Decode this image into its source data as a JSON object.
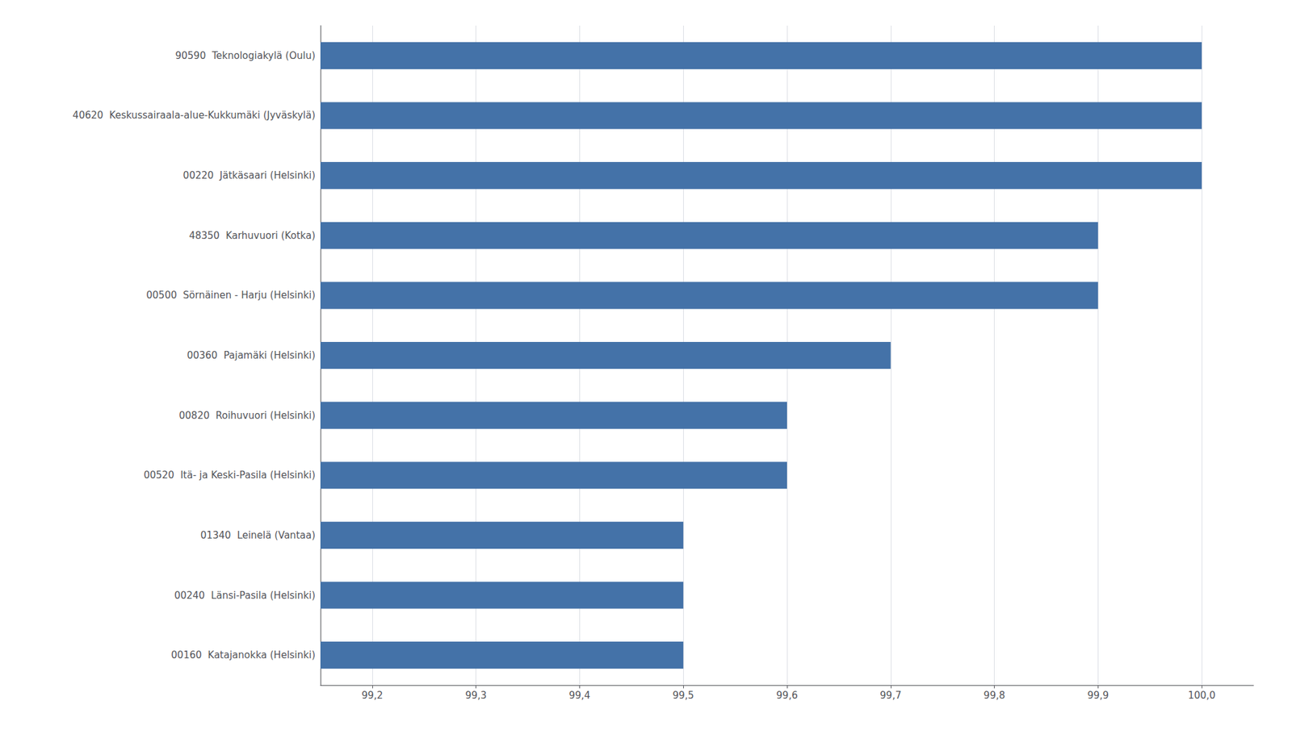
{
  "chart_data": {
    "type": "bar",
    "orientation": "horizontal",
    "categories": [
      "00160  Katajanokka (Helsinki)",
      "00240  Länsi-Pasila (Helsinki)",
      "01340  Leinelä (Vantaa)",
      "00520  Itä- ja Keski-Pasila (Helsinki)",
      "00820  Roihuvuori (Helsinki)",
      "00360  Pajamäki (Helsinki)",
      "00500  Sörnäinen - Harju (Helsinki)",
      "48350  Karhuvuori (Kotka)",
      "00220  Jätkäsaari (Helsinki)",
      "40620  Keskussairaala-alue-Kukkumäki (Jyväskylä)",
      "90590  Teknologiakylä (Oulu)"
    ],
    "values": [
      99.5,
      99.5,
      99.5,
      99.6,
      99.6,
      99.7,
      99.9,
      99.9,
      100.0,
      100.0,
      100.0
    ],
    "color": "#4472a8",
    "xlim": [
      99.15,
      100.05
    ],
    "xticks": [
      {
        "value": 99.2,
        "label": "99,2"
      },
      {
        "value": 99.3,
        "label": "99,3"
      },
      {
        "value": 99.4,
        "label": "99,4"
      },
      {
        "value": 99.5,
        "label": "99,5"
      },
      {
        "value": 99.6,
        "label": "99,6"
      },
      {
        "value": 99.7,
        "label": "99,7"
      },
      {
        "value": 99.8,
        "label": "99,8"
      },
      {
        "value": 99.9,
        "label": "99,9"
      },
      {
        "value": 100.0,
        "label": "100,0"
      }
    ],
    "grid": true
  }
}
